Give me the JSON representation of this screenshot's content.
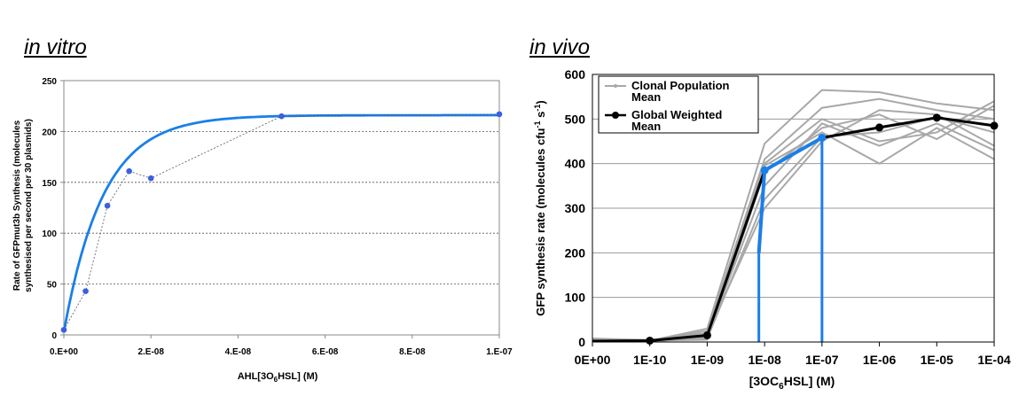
{
  "panels": {
    "left_title": "in vitro",
    "right_title": "in vivo"
  },
  "chart_data": [
    {
      "type": "scatter",
      "title": "",
      "xlabel": "AHL[3O",
      "xlabel_sub": "6",
      "xlabel_tail": "HSL] (M)",
      "ylabel_line1": "Rate of GFPmut3b Synthesis (molecules",
      "ylabel_line2": "synthesised per second per 30 plasmids)",
      "xlim": [
        0,
        1e-07
      ],
      "ylim": [
        0,
        250
      ],
      "x_ticks": [
        0,
        2e-08,
        4e-08,
        6e-08,
        8e-08,
        1e-07
      ],
      "x_tick_labels": [
        "0.E+00",
        "2.E-08",
        "4.E-08",
        "6.E-08",
        "8.E-08",
        "1.E-07"
      ],
      "y_ticks": [
        0,
        50,
        100,
        150,
        200,
        250
      ],
      "y_tick_labels": [
        "0",
        "50",
        "100",
        "150",
        "200",
        "250"
      ],
      "grid": "horizontal dotted",
      "series": [
        {
          "kind": "points-with-dotted-connector",
          "color": "#3a5fe0",
          "x": [
            0,
            5e-09,
            1e-08,
            1.5e-08,
            2e-08,
            5e-08,
            1e-07
          ],
          "y": [
            5,
            43,
            127,
            161,
            154,
            215,
            217
          ]
        },
        {
          "kind": "fitted-curve",
          "color": "#1a7fe8",
          "ymax": 216,
          "k": 110000000.0
        }
      ]
    },
    {
      "type": "line",
      "title": "",
      "xlabel": "[3OC",
      "xlabel_sub": "6",
      "xlabel_tail": "HSL] (M)",
      "ylabel": "GFP synthesis rate (molecules cfu",
      "ylabel_sup1": "-1",
      "ylabel_mid": " s",
      "ylabel_sup2": "-1",
      "ylabel_tail": ")",
      "categories": [
        "0E+00",
        "1E-10",
        "1E-09",
        "1E-08",
        "1E-07",
        "1E-06",
        "1E-05",
        "1E-04"
      ],
      "ylim": [
        0,
        600
      ],
      "y_ticks": [
        0,
        100,
        200,
        300,
        400,
        500,
        600
      ],
      "y_tick_labels": [
        "0",
        "100",
        "200",
        "300",
        "400",
        "500",
        "600"
      ],
      "grid": "horizontal solid",
      "legend": "top-left",
      "legend_entries": [
        "Clonal Population",
        "Mean",
        "Global Weighted",
        "Mean"
      ],
      "global_mean": {
        "name": "Global Weighted Mean",
        "color": "#000000",
        "x": [
          0,
          1,
          2,
          3,
          4,
          5,
          6,
          7
        ],
        "y": [
          2,
          3,
          15,
          385,
          458,
          481,
          503,
          485
        ]
      },
      "global_mean_highlight": {
        "color": "#1a7fe8",
        "x": [
          2.9,
          3,
          4
        ],
        "y": [
          200,
          385,
          458
        ]
      },
      "markers": {
        "x": [
          1,
          2,
          3,
          4,
          5,
          6,
          7
        ],
        "y": [
          3,
          15,
          385,
          458,
          481,
          503,
          485
        ]
      },
      "threshold_lines": {
        "color": "#1a7fe8",
        "x": [
          2.9,
          4
        ],
        "y_top": [
          200,
          458
        ]
      },
      "clonal_means": {
        "name": "Clonal Population Mean",
        "color": "#a8a8a8",
        "x": [
          0,
          1,
          2,
          3,
          4,
          5,
          6,
          7
        ],
        "series": [
          [
            5,
            3,
            30,
            445,
            565,
            560,
            535,
            520
          ],
          [
            3,
            2,
            25,
            410,
            525,
            545,
            520,
            500
          ],
          [
            8,
            4,
            20,
            400,
            500,
            450,
            470,
            540
          ],
          [
            2,
            1,
            10,
            395,
            470,
            400,
            480,
            410
          ],
          [
            4,
            3,
            5,
            380,
            480,
            510,
            455,
            530
          ],
          [
            6,
            5,
            12,
            350,
            490,
            440,
            490,
            430
          ],
          [
            3,
            2,
            8,
            320,
            460,
            470,
            505,
            470
          ],
          [
            5,
            4,
            18,
            300,
            450,
            520,
            510,
            440
          ]
        ]
      }
    }
  ]
}
